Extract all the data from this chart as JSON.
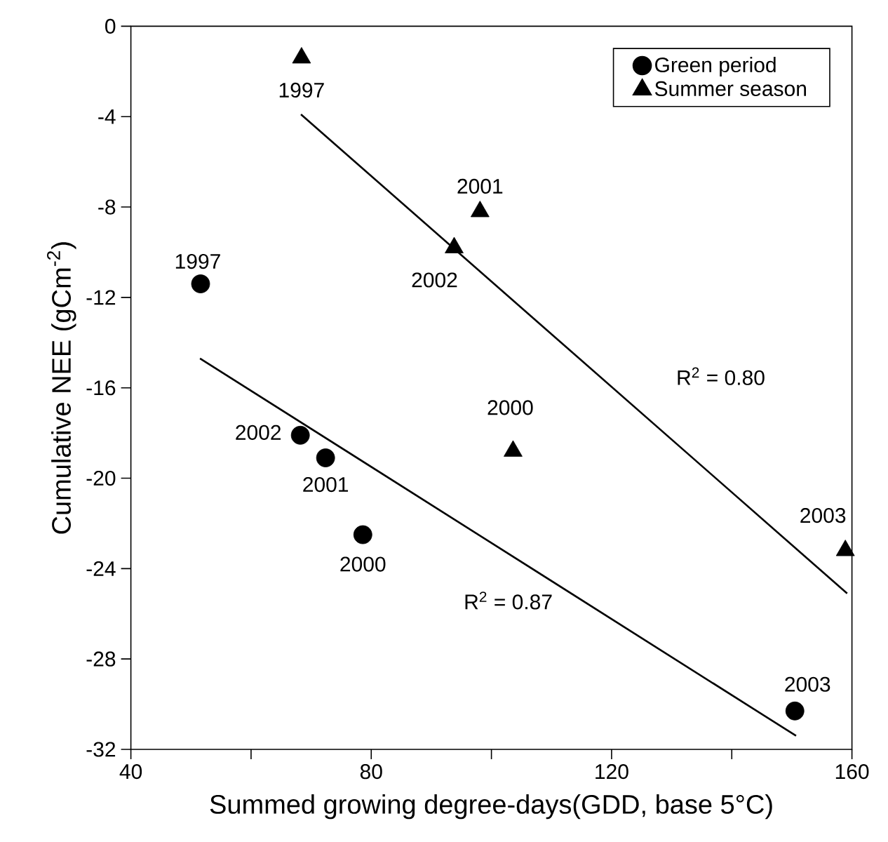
{
  "chart_data": {
    "type": "scatter",
    "xlabel": "Summed growing degree-days(GDD, base 5°C)",
    "ylabel": "Cumulative NEE (gCm$^{-2}$)",
    "xlim": [
      40,
      160
    ],
    "ylim": [
      -32,
      0
    ],
    "xticks": [
      40,
      {
        "value": 60,
        "label": null
      },
      80,
      {
        "value": 100,
        "label": null
      },
      120,
      {
        "value": 140,
        "label": null
      },
      160
    ],
    "yticks": [
      0,
      -4,
      -8,
      -12,
      -16,
      -20,
      -24,
      -28,
      -32
    ],
    "legend": "top right",
    "series": [
      {
        "name": "Green period",
        "marker": "circle",
        "color": "#000000",
        "x": [
          51.6,
          68.2,
          72.4,
          78.6,
          150.5
        ],
        "values": [
          -11.4,
          -18.1,
          -19.1,
          -22.5,
          -30.3
        ]
      },
      {
        "name": "Summer season",
        "marker": "triangle",
        "color": "#000000",
        "x": [
          68.4,
          98.1,
          93.8,
          103.6,
          158.9
        ],
        "values": [
          -1.4,
          -8.2,
          -9.8,
          -18.8,
          -23.2
        ]
      },
      {
        "type": "line",
        "marker": "none",
        "color": "#000000",
        "x": [
          51.5,
          150.7
        ],
        "values": [
          -14.7,
          -31.4
        ]
      },
      {
        "type": "line",
        "marker": "none",
        "color": "#000000",
        "x": [
          68.3,
          159.2
        ],
        "values": [
          -3.9,
          -25.1
        ]
      }
    ],
    "annotations": [
      {
        "text": "1997",
        "x": 51.6,
        "y": -11.4
      },
      {
        "text": "2002",
        "x": 68.2,
        "y": -18.1
      },
      {
        "text": "2001",
        "x": 72.4,
        "y": -19.1
      },
      {
        "text": "2000",
        "x": 78.6,
        "y": -22.5
      },
      {
        "text": "2003",
        "x": 150.5,
        "y": -30.3
      },
      {
        "text": "1997",
        "x": 68.4,
        "y": -1.4
      },
      {
        "text": "2001",
        "x": 98.1,
        "y": -8.2
      },
      {
        "text": "2002",
        "x": 93.8,
        "y": -9.8
      },
      {
        "text": "2000",
        "x": 103.6,
        "y": -18.8
      },
      {
        "text": "2003",
        "x": 158.9,
        "y": -23.2
      },
      "R$^{2}$ = 0.80",
      {
        "text": "R$^{2}$ = 0.87",
        "x": 102.8,
        "y": -23.3
      }
    ]
  }
}
